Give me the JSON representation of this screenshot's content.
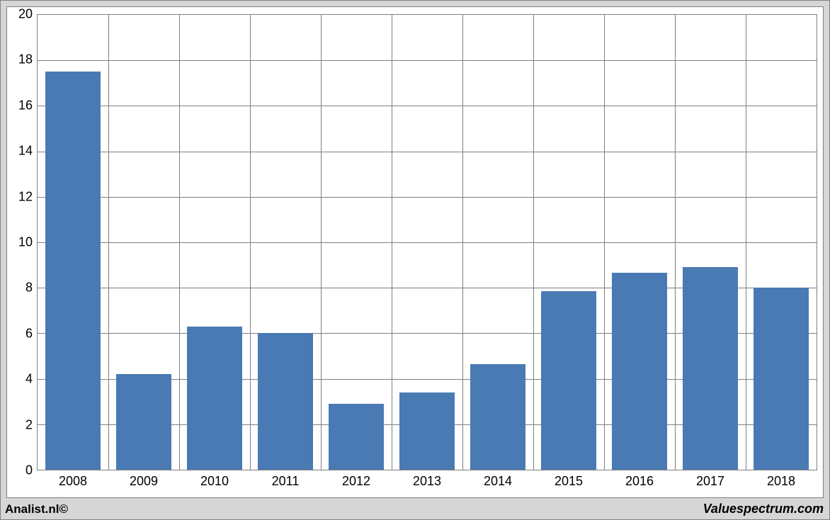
{
  "chart": {
    "type": "bar",
    "categories": [
      "2008",
      "2009",
      "2010",
      "2011",
      "2012",
      "2013",
      "2014",
      "2015",
      "2016",
      "2017",
      "2018"
    ],
    "values": [
      17.5,
      4.2,
      6.3,
      6.0,
      2.9,
      3.4,
      4.65,
      7.85,
      8.65,
      8.9,
      8.0
    ],
    "bar_color": "#4a7ab3",
    "ylim": [
      0,
      20
    ],
    "ytick_step": 2,
    "grid_color": "#808080",
    "plot_background": "#ffffff",
    "outer_background": "#d6d6d6",
    "bar_width_ratio": 0.78,
    "tick_fontsize": 18,
    "tick_color": "#000000"
  },
  "footer": {
    "left": "Analist.nl©",
    "right": "Valuespectrum.com"
  }
}
